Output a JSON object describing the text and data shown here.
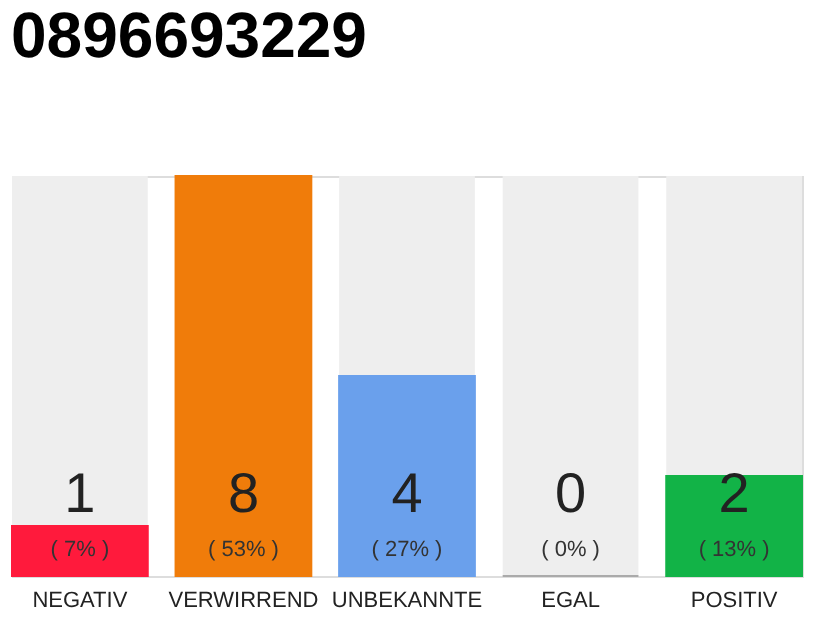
{
  "chart_data": {
    "type": "bar",
    "title": "0896693229",
    "categories": [
      "NEGATIV",
      "VERWIRREND",
      "UNBEKANNTE",
      "EGAL",
      "POSITIV"
    ],
    "values": [
      1,
      8,
      4,
      0,
      2
    ],
    "colors": [
      "#ff1a3c",
      "#f07c0a",
      "#6aa0ec",
      "#aaaaaa",
      "#12b347"
    ],
    "ylim": [
      0,
      8
    ],
    "tick_labels": "x",
    "grid": false,
    "data_labels": true,
    "annotations": [
      "( 7% )",
      "( 53% )",
      "( 27% )",
      "( 0% )",
      "( 13% )"
    ]
  }
}
